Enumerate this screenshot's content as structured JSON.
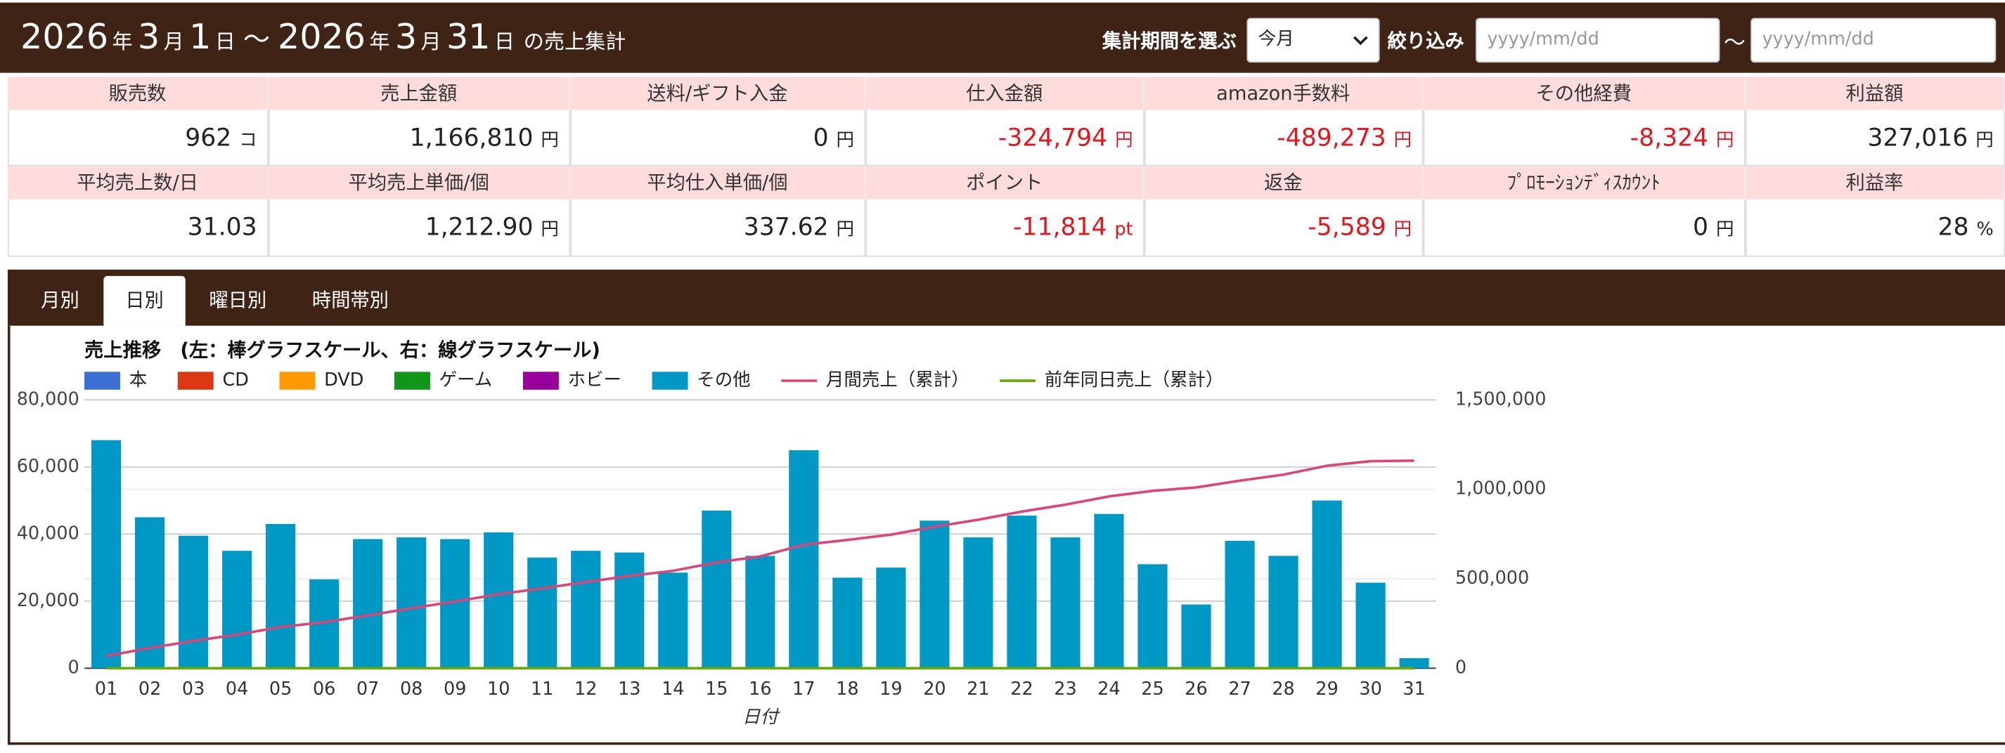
{
  "header": {
    "start_year": "2026",
    "start_month": "3",
    "start_day": "1",
    "end_year": "2026",
    "end_month": "3",
    "end_day": "31",
    "year_unit": "年",
    "month_unit": "月",
    "day_unit": "日",
    "separator": "～",
    "suffix": "の売上集計"
  },
  "controls": {
    "period_label": "集計期間を選ぶ",
    "period_value": "今月",
    "filter_label": "絞り込み",
    "date_from_placeholder": "yyyy/mm/dd",
    "range_separator": "～",
    "date_to_placeholder": "yyyy/mm/dd"
  },
  "summary": {
    "rows": [
      [
        {
          "label": "販売数",
          "value": "962",
          "unit": "コ"
        },
        {
          "label": "売上金額",
          "value": "1,166,810",
          "unit": "円"
        },
        {
          "label": "送料/ギフト入金",
          "value": "0",
          "unit": "円"
        },
        {
          "label": "仕入金額",
          "value": "-324,794",
          "unit": "円"
        },
        {
          "label": "amazon手数料",
          "value": "-489,273",
          "unit": "円"
        },
        {
          "label": "その他経費",
          "value": "-8,324",
          "unit": "円"
        },
        {
          "label": "利益額",
          "value": "327,016",
          "unit": "円"
        }
      ],
      [
        {
          "label": "平均売上数/日",
          "value": "31.03"
        },
        {
          "label": "平均売上単価/個",
          "value": "1,212.90",
          "unit": "円"
        },
        {
          "label": "平均仕入単価/個",
          "value": "337.62",
          "unit": "円"
        },
        {
          "label": "ポイント",
          "value": "-11,814",
          "unit": "pt"
        },
        {
          "label": "返金",
          "value": "-5,589",
          "unit": "円"
        },
        {
          "label": "ﾌﾟﾛﾓｰｼｮﾝﾃﾞｨｽｶｳﾝﾄ",
          "value": "0",
          "unit": "円"
        },
        {
          "label": "利益率",
          "value": "28",
          "unit": "%"
        }
      ]
    ]
  },
  "tabs": {
    "items": [
      "月別",
      "日別",
      "曜日別",
      "時間帯別"
    ],
    "active": 1
  },
  "chart_data": {
    "type": "bar",
    "stacked": true,
    "title": "売上推移　(左：棒グラフスケール、右：線グラフスケール)",
    "x_label": "日付",
    "categories": [
      "01",
      "02",
      "03",
      "04",
      "05",
      "06",
      "07",
      "08",
      "09",
      "10",
      "11",
      "12",
      "13",
      "14",
      "15",
      "16",
      "17",
      "18",
      "19",
      "20",
      "21",
      "22",
      "23",
      "24",
      "25",
      "26",
      "27",
      "28",
      "29",
      "30",
      "31"
    ],
    "ylim": [
      0,
      80000
    ],
    "yticks": [
      0,
      {
        "value": 20000,
        "label": "20,000"
      },
      {
        "value": 40000,
        "label": "40,000"
      },
      {
        "value": 60000,
        "label": "60,000"
      },
      {
        "value": 80000,
        "label": "80,000"
      }
    ],
    "y2lim": [
      0,
      1500000
    ],
    "y2ticks": [
      0,
      {
        "value": 500000,
        "label": "500,000"
      },
      {
        "value": 1000000,
        "label": "1,000,000"
      },
      {
        "value": 1500000,
        "label": "1,500,000"
      }
    ],
    "grid": true,
    "series": [
      {
        "name": "本",
        "color": "#3b6fd4",
        "values": [
          0,
          0,
          0,
          0,
          0,
          0,
          0,
          0,
          0,
          0,
          0,
          0,
          0,
          0,
          0,
          0,
          0,
          0,
          0,
          0,
          0,
          0,
          0,
          0,
          0,
          0,
          0,
          0,
          0,
          0,
          0
        ]
      },
      {
        "name": "CD",
        "color": "#dc3912",
        "values": [
          0,
          0,
          0,
          0,
          0,
          0,
          0,
          0,
          0,
          0,
          0,
          0,
          0,
          0,
          0,
          0,
          0,
          0,
          0,
          0,
          0,
          0,
          0,
          0,
          0,
          0,
          0,
          0,
          0,
          0,
          0
        ]
      },
      {
        "name": "DVD",
        "color": "#ff9900",
        "values": [
          0,
          0,
          0,
          0,
          0,
          0,
          0,
          0,
          0,
          0,
          0,
          0,
          0,
          0,
          0,
          0,
          0,
          0,
          0,
          0,
          0,
          0,
          0,
          0,
          0,
          0,
          0,
          0,
          0,
          0,
          0
        ]
      },
      {
        "name": "ゲーム",
        "color": "#109618",
        "values": [
          0,
          0,
          0,
          0,
          0,
          0,
          0,
          0,
          0,
          0,
          0,
          0,
          0,
          0,
          0,
          0,
          0,
          0,
          0,
          0,
          0,
          0,
          0,
          0,
          0,
          0,
          0,
          0,
          0,
          0,
          0
        ]
      },
      {
        "name": "ホビー",
        "color": "#990099",
        "values": [
          0,
          0,
          0,
          0,
          0,
          0,
          0,
          0,
          0,
          0,
          0,
          0,
          0,
          0,
          0,
          0,
          0,
          0,
          0,
          0,
          0,
          0,
          0,
          0,
          0,
          0,
          0,
          0,
          0,
          0,
          0
        ]
      },
      {
        "name": "その他",
        "color": "#0099c6",
        "values": [
          68000,
          45000,
          39500,
          35000,
          43000,
          26500,
          38500,
          39000,
          38500,
          40500,
          33000,
          35000,
          34500,
          28500,
          47000,
          33500,
          65000,
          27000,
          30000,
          44000,
          39000,
          45500,
          39000,
          46000,
          31000,
          19000,
          38000,
          33500,
          50000,
          25500,
          3000
        ]
      },
      {
        "name": "月間売上（累計）",
        "color": "#dd4477",
        "type": "line",
        "axis": "y2",
        "values": [
          68000,
          113000,
          152500,
          187500,
          230500,
          257000,
          295500,
          334500,
          373000,
          413500,
          446500,
          481500,
          516000,
          544500,
          591500,
          625000,
          690000,
          717000,
          747000,
          791000,
          830000,
          875500,
          914500,
          960500,
          991500,
          1010500,
          1048500,
          1082000,
          1132000,
          1157500,
          1160500
        ]
      },
      {
        "name": "前年同日売上（累計）",
        "color": "#66aa00",
        "type": "line",
        "axis": "y2",
        "values": [
          0,
          0,
          0,
          0,
          0,
          0,
          0,
          0,
          0,
          0,
          0,
          0,
          0,
          0,
          0,
          0,
          0,
          0,
          0,
          0,
          0,
          0,
          0,
          0,
          0,
          0,
          0,
          0,
          0,
          0,
          0
        ]
      }
    ]
  }
}
